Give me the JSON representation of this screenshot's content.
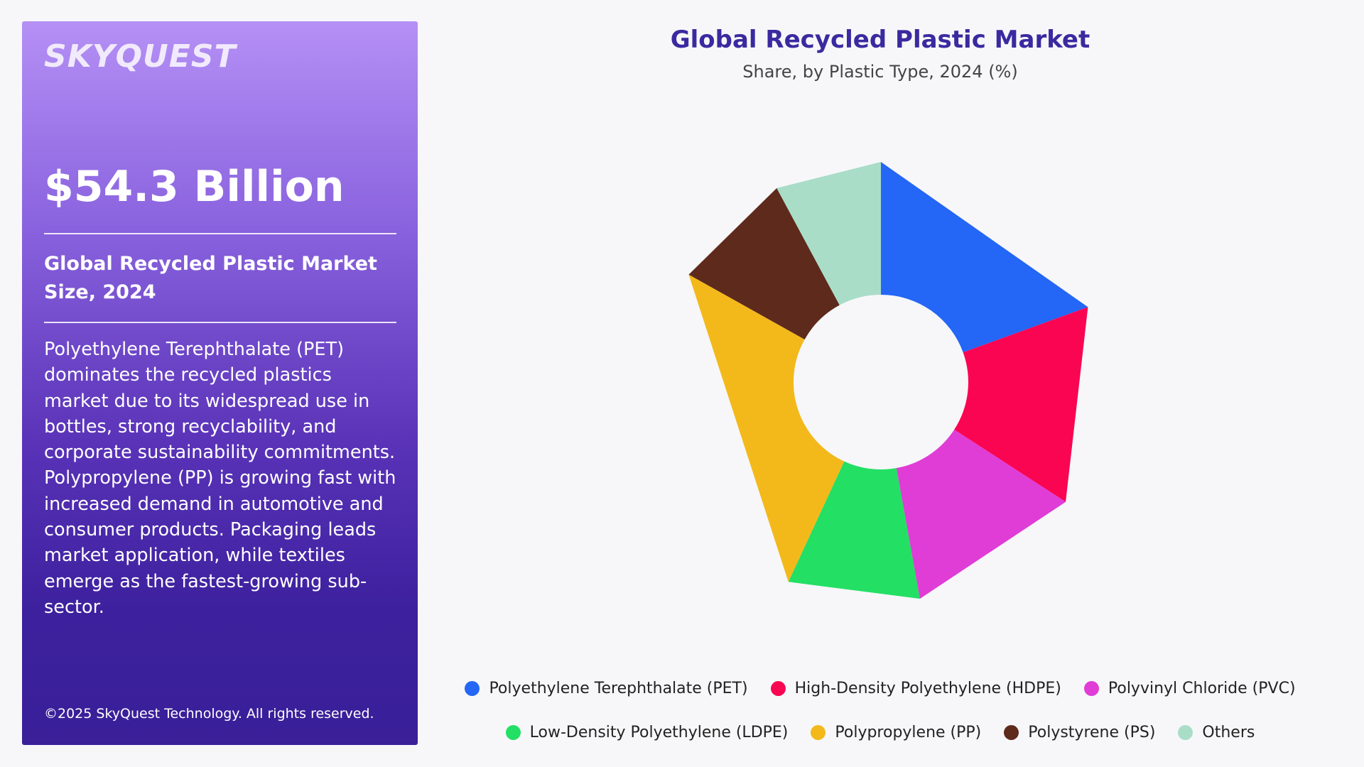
{
  "sidebar": {
    "logo": "SKYQUEST",
    "market_value": "$54.3 Billion",
    "size_label": "Global Recycled Plastic Market Size, 2024",
    "description": "Polyethylene Terephthalate (PET) dominates the recycled plastics market due to its widespread use in bottles, strong recyclability, and corporate sustainability commitments. Polypropylene (PP) is growing fast with increased demand in automotive and consumer products. Packaging leads market application, while textiles emerge as the fastest-growing sub-sector.",
    "copyright": "©2025 SkyQuest Technology. All rights reserved."
  },
  "chart_data": {
    "type": "pie",
    "style": "donut",
    "title": "Global Recycled Plastic Market",
    "subtitle": "Share, by Plastic Type, 2024 (%)",
    "categories": [
      "Polyethylene Terephthalate (PET)",
      "High-Density Polyethylene (HDPE)",
      "Polyvinyl Chloride (PVC)",
      "Low-Density Polyethylene (LDPE)",
      "Polypropylene (PP)",
      "Polystyrene (PS)",
      "Others"
    ],
    "values": [
      19.6,
      14.8,
      13.1,
      9.8,
      26.4,
      9.1,
      7.9
    ],
    "colors": [
      "#2466f5",
      "#fa0552",
      "#e03cd6",
      "#23df64",
      "#f3b91b",
      "#5e2a1c",
      "#a9ddc8"
    ],
    "legend_position": "bottom"
  }
}
